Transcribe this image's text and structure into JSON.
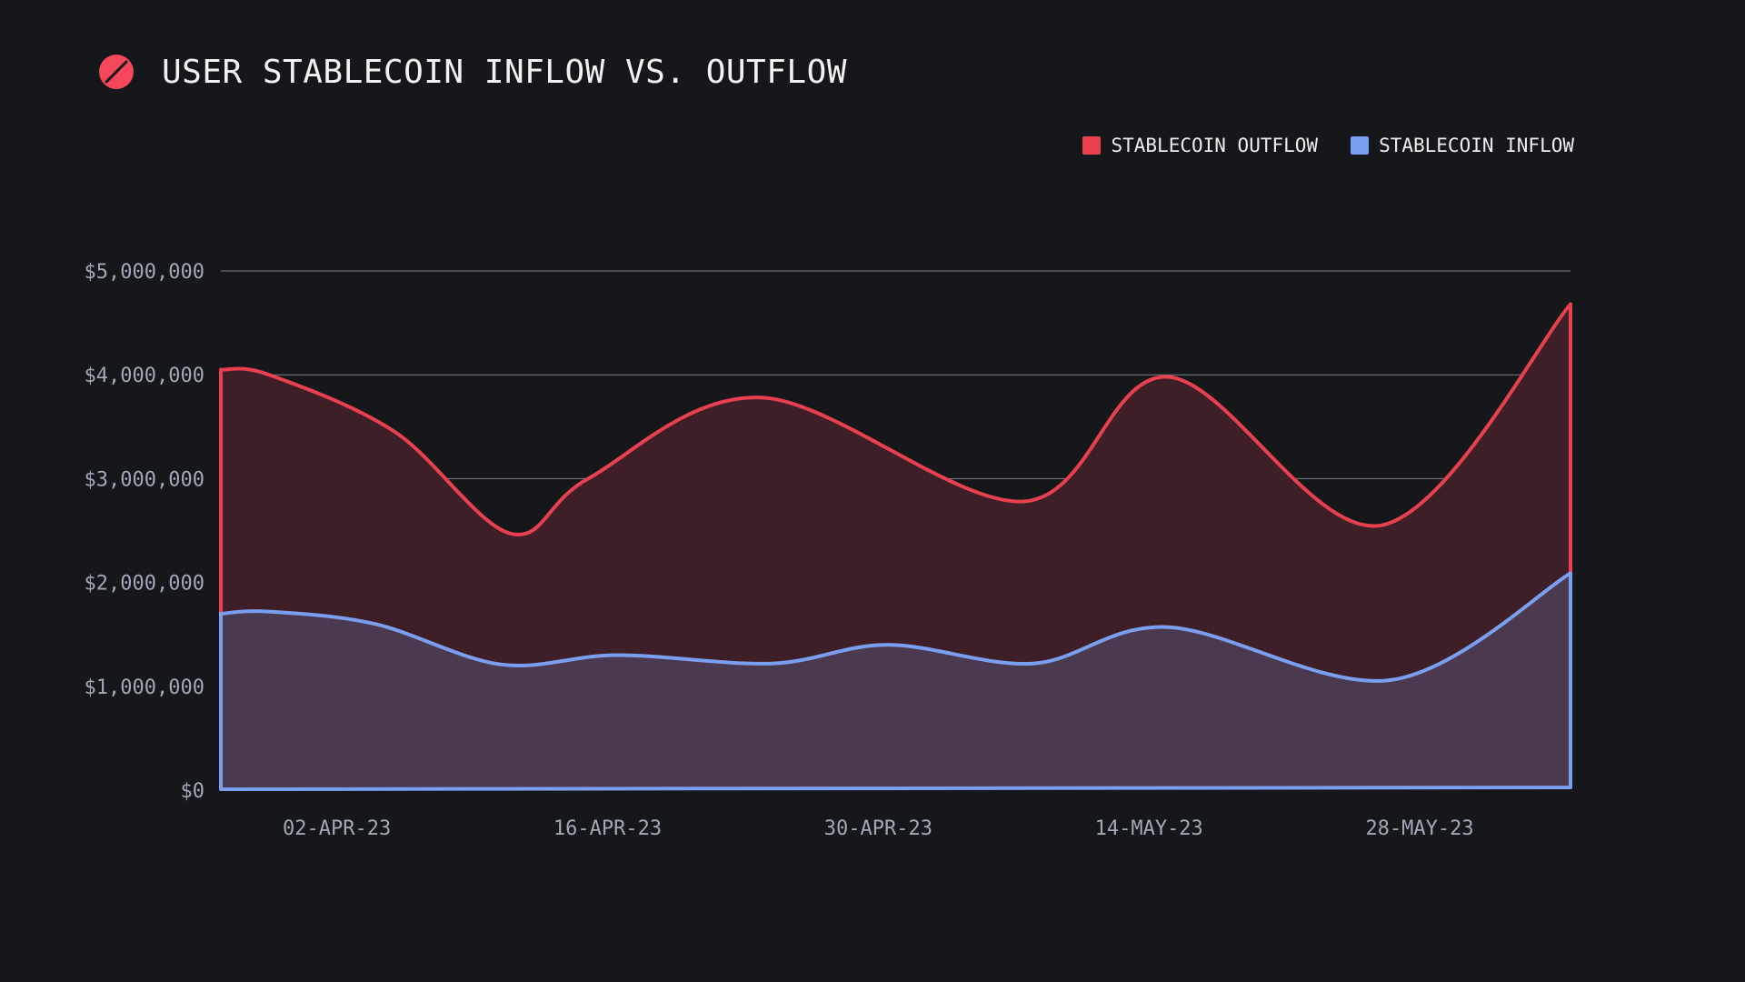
{
  "header": {
    "title": "USER STABLECOIN INFLOW VS. OUTFLOW",
    "logo_icon": "slashed-circle-logo-icon"
  },
  "colors": {
    "background": "#16171b",
    "outflow": "#e8404f",
    "outflow_fill": "#3f1f27",
    "inflow": "#7b9ff0",
    "inflow_fill": "#4b3a4f",
    "grid": "#8a8c94"
  },
  "legend": {
    "placement": "top-right",
    "items": [
      {
        "label": "STABLECOIN OUTFLOW",
        "color": "#e8404f"
      },
      {
        "label": "STABLECOIN INFLOW",
        "color": "#7b9ff0"
      }
    ]
  },
  "chart_data": {
    "type": "area",
    "title": "USER STABLECOIN INFLOW VS. OUTFLOW",
    "xlabel": "",
    "ylabel": "",
    "ylim": [
      0,
      5000000
    ],
    "yticks": [
      0,
      1000000,
      2000000,
      3000000,
      4000000,
      5000000
    ],
    "ytick_labels": [
      "$0",
      "$1,000,000",
      "$2,000,000",
      "$3,000,000",
      "$4,000,000",
      "$5,000,000"
    ],
    "xlim": [
      0,
      69.8
    ],
    "xticks": [
      6,
      20,
      34,
      48,
      62
    ],
    "xtick_labels": [
      "02-APR-23",
      "16-APR-23",
      "30-APR-23",
      "14-MAY-23",
      "28-MAY-23"
    ],
    "grid": true,
    "series": [
      {
        "name": "STABLECOIN OUTFLOW",
        "x": [
          0,
          2.5,
          9,
          15,
          19,
          28,
          41.5,
          49,
          60,
          69.8
        ],
        "values": [
          4050000,
          4000000,
          3450000,
          2470000,
          3000000,
          3780000,
          2780000,
          3980000,
          2550000,
          4680000
        ]
      },
      {
        "name": "STABLECOIN INFLOW",
        "x": [
          0,
          2.5,
          8,
          14.5,
          20.5,
          28.5,
          34.5,
          42,
          49,
          60.5,
          69.8
        ],
        "values": [
          1700000,
          1720000,
          1600000,
          1210000,
          1300000,
          1220000,
          1400000,
          1220000,
          1570000,
          1060000,
          2090000
        ]
      }
    ]
  }
}
